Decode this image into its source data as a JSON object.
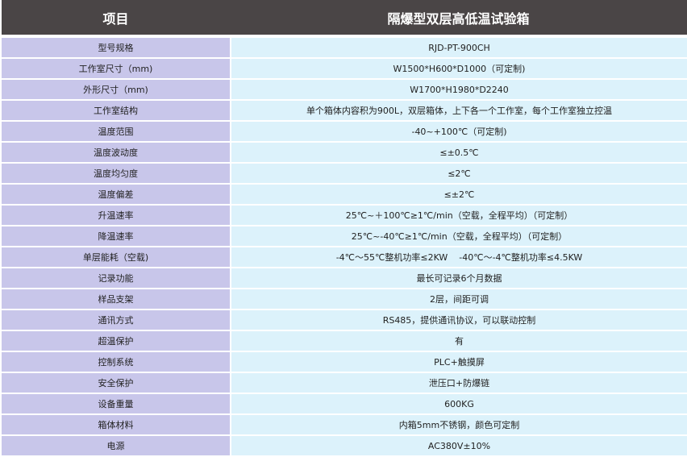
{
  "header": {
    "item": "项目",
    "product": "隔爆型双层高低温试验箱"
  },
  "colors": {
    "header_bg": "#4a4546",
    "label_bg": "#c8c6ea",
    "value_bg": "#dcf2fb"
  },
  "rows": [
    {
      "label": "型号规格",
      "value": "RJD-PT-900CH"
    },
    {
      "label": "工作室尺寸（mm)",
      "value": "W1500*H600*D1000（可定制)"
    },
    {
      "label": "外形尺寸（mm)",
      "value": "W1700*H1980*D2240"
    },
    {
      "label": "工作室结构",
      "value": "单个箱体内容积为900L，双层箱体，上下各一个工作室，每个工作室独立控温"
    },
    {
      "label": "温度范围",
      "value": "-40~+100℃（可定制)"
    },
    {
      "label": "温度波动度",
      "value": "≤±0.5℃"
    },
    {
      "label": "温度均匀度",
      "value": "≤2℃"
    },
    {
      "label": "温度偏差",
      "value": "≤±2℃"
    },
    {
      "label": "升温速率",
      "value": "25℃~＋100℃≥1℃/min（空载，全程平均）（可定制）"
    },
    {
      "label": "降温速率",
      "value": "25℃~-40℃≥1℃/min（空载，全程平均）（可定制）"
    },
    {
      "label": "单层能耗（空载)",
      "value": "-4℃～55℃整机功率≤2KW    -40℃～-4℃整机功率≤4.5KW"
    },
    {
      "label": "记录功能",
      "value": "最长可记录6个月数据"
    },
    {
      "label": "样品支架",
      "value": "2层，间距可调"
    },
    {
      "label": "通讯方式",
      "value": "RS485，提供通讯协议，可以联动控制"
    },
    {
      "label": "超温保护",
      "value": "有"
    },
    {
      "label": "控制系统",
      "value": "PLC+触摸屏"
    },
    {
      "label": "安全保护",
      "value": "泄压口+防爆链"
    },
    {
      "label": "设备重量",
      "value": "600KG"
    },
    {
      "label": "箱体材料",
      "value": "内箱5mm不锈钢，颜色可定制"
    },
    {
      "label": "电源",
      "value": "AC380V±10%"
    }
  ]
}
